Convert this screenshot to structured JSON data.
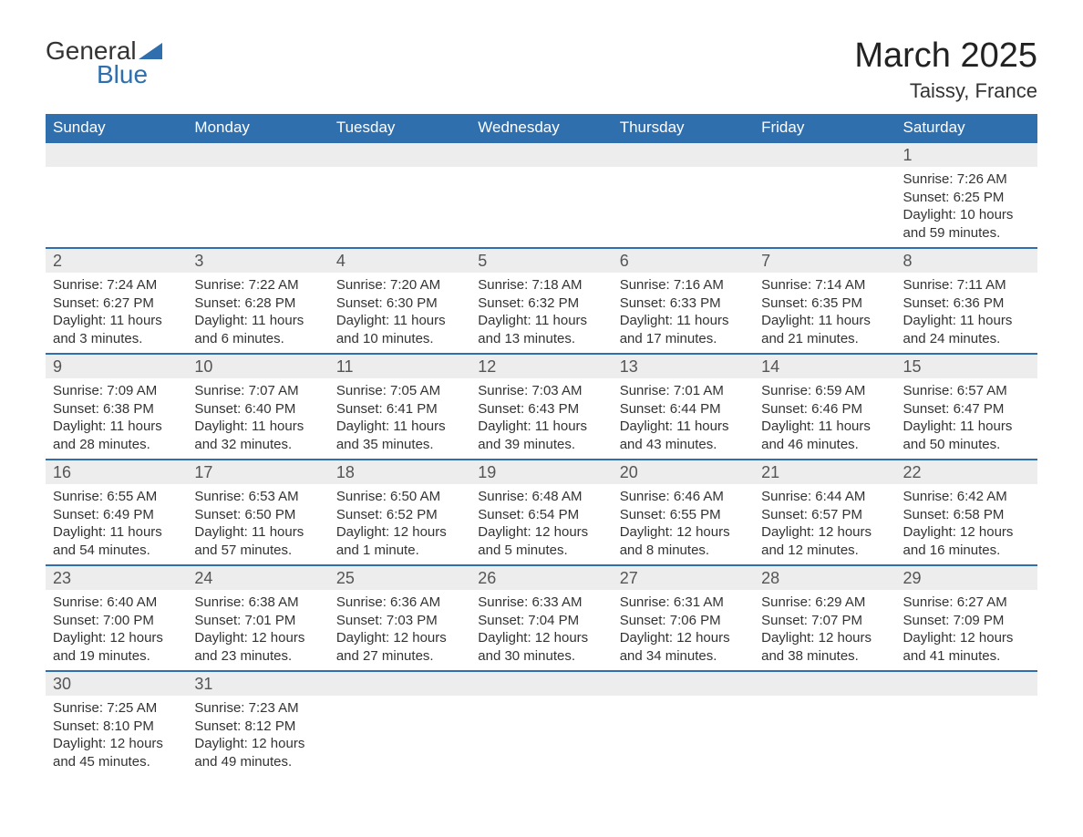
{
  "logo": {
    "text1": "General",
    "text2": "Blue",
    "tri_color": "#2f6fae"
  },
  "title": "March 2025",
  "location": "Taissy, France",
  "colors": {
    "header_bg": "#2f6fae",
    "header_text": "#ffffff",
    "daynum_bg": "#ededed",
    "border": "#2f6fae",
    "text": "#333333"
  },
  "day_headers": [
    "Sunday",
    "Monday",
    "Tuesday",
    "Wednesday",
    "Thursday",
    "Friday",
    "Saturday"
  ],
  "weeks": [
    {
      "nums": [
        "",
        "",
        "",
        "",
        "",
        "",
        "1"
      ],
      "cells": [
        null,
        null,
        null,
        null,
        null,
        null,
        {
          "sunrise": "Sunrise: 7:26 AM",
          "sunset": "Sunset: 6:25 PM",
          "day1": "Daylight: 10 hours",
          "day2": "and 59 minutes."
        }
      ]
    },
    {
      "nums": [
        "2",
        "3",
        "4",
        "5",
        "6",
        "7",
        "8"
      ],
      "cells": [
        {
          "sunrise": "Sunrise: 7:24 AM",
          "sunset": "Sunset: 6:27 PM",
          "day1": "Daylight: 11 hours",
          "day2": "and 3 minutes."
        },
        {
          "sunrise": "Sunrise: 7:22 AM",
          "sunset": "Sunset: 6:28 PM",
          "day1": "Daylight: 11 hours",
          "day2": "and 6 minutes."
        },
        {
          "sunrise": "Sunrise: 7:20 AM",
          "sunset": "Sunset: 6:30 PM",
          "day1": "Daylight: 11 hours",
          "day2": "and 10 minutes."
        },
        {
          "sunrise": "Sunrise: 7:18 AM",
          "sunset": "Sunset: 6:32 PM",
          "day1": "Daylight: 11 hours",
          "day2": "and 13 minutes."
        },
        {
          "sunrise": "Sunrise: 7:16 AM",
          "sunset": "Sunset: 6:33 PM",
          "day1": "Daylight: 11 hours",
          "day2": "and 17 minutes."
        },
        {
          "sunrise": "Sunrise: 7:14 AM",
          "sunset": "Sunset: 6:35 PM",
          "day1": "Daylight: 11 hours",
          "day2": "and 21 minutes."
        },
        {
          "sunrise": "Sunrise: 7:11 AM",
          "sunset": "Sunset: 6:36 PM",
          "day1": "Daylight: 11 hours",
          "day2": "and 24 minutes."
        }
      ]
    },
    {
      "nums": [
        "9",
        "10",
        "11",
        "12",
        "13",
        "14",
        "15"
      ],
      "cells": [
        {
          "sunrise": "Sunrise: 7:09 AM",
          "sunset": "Sunset: 6:38 PM",
          "day1": "Daylight: 11 hours",
          "day2": "and 28 minutes."
        },
        {
          "sunrise": "Sunrise: 7:07 AM",
          "sunset": "Sunset: 6:40 PM",
          "day1": "Daylight: 11 hours",
          "day2": "and 32 minutes."
        },
        {
          "sunrise": "Sunrise: 7:05 AM",
          "sunset": "Sunset: 6:41 PM",
          "day1": "Daylight: 11 hours",
          "day2": "and 35 minutes."
        },
        {
          "sunrise": "Sunrise: 7:03 AM",
          "sunset": "Sunset: 6:43 PM",
          "day1": "Daylight: 11 hours",
          "day2": "and 39 minutes."
        },
        {
          "sunrise": "Sunrise: 7:01 AM",
          "sunset": "Sunset: 6:44 PM",
          "day1": "Daylight: 11 hours",
          "day2": "and 43 minutes."
        },
        {
          "sunrise": "Sunrise: 6:59 AM",
          "sunset": "Sunset: 6:46 PM",
          "day1": "Daylight: 11 hours",
          "day2": "and 46 minutes."
        },
        {
          "sunrise": "Sunrise: 6:57 AM",
          "sunset": "Sunset: 6:47 PM",
          "day1": "Daylight: 11 hours",
          "day2": "and 50 minutes."
        }
      ]
    },
    {
      "nums": [
        "16",
        "17",
        "18",
        "19",
        "20",
        "21",
        "22"
      ],
      "cells": [
        {
          "sunrise": "Sunrise: 6:55 AM",
          "sunset": "Sunset: 6:49 PM",
          "day1": "Daylight: 11 hours",
          "day2": "and 54 minutes."
        },
        {
          "sunrise": "Sunrise: 6:53 AM",
          "sunset": "Sunset: 6:50 PM",
          "day1": "Daylight: 11 hours",
          "day2": "and 57 minutes."
        },
        {
          "sunrise": "Sunrise: 6:50 AM",
          "sunset": "Sunset: 6:52 PM",
          "day1": "Daylight: 12 hours",
          "day2": "and 1 minute."
        },
        {
          "sunrise": "Sunrise: 6:48 AM",
          "sunset": "Sunset: 6:54 PM",
          "day1": "Daylight: 12 hours",
          "day2": "and 5 minutes."
        },
        {
          "sunrise": "Sunrise: 6:46 AM",
          "sunset": "Sunset: 6:55 PM",
          "day1": "Daylight: 12 hours",
          "day2": "and 8 minutes."
        },
        {
          "sunrise": "Sunrise: 6:44 AM",
          "sunset": "Sunset: 6:57 PM",
          "day1": "Daylight: 12 hours",
          "day2": "and 12 minutes."
        },
        {
          "sunrise": "Sunrise: 6:42 AM",
          "sunset": "Sunset: 6:58 PM",
          "day1": "Daylight: 12 hours",
          "day2": "and 16 minutes."
        }
      ]
    },
    {
      "nums": [
        "23",
        "24",
        "25",
        "26",
        "27",
        "28",
        "29"
      ],
      "cells": [
        {
          "sunrise": "Sunrise: 6:40 AM",
          "sunset": "Sunset: 7:00 PM",
          "day1": "Daylight: 12 hours",
          "day2": "and 19 minutes."
        },
        {
          "sunrise": "Sunrise: 6:38 AM",
          "sunset": "Sunset: 7:01 PM",
          "day1": "Daylight: 12 hours",
          "day2": "and 23 minutes."
        },
        {
          "sunrise": "Sunrise: 6:36 AM",
          "sunset": "Sunset: 7:03 PM",
          "day1": "Daylight: 12 hours",
          "day2": "and 27 minutes."
        },
        {
          "sunrise": "Sunrise: 6:33 AM",
          "sunset": "Sunset: 7:04 PM",
          "day1": "Daylight: 12 hours",
          "day2": "and 30 minutes."
        },
        {
          "sunrise": "Sunrise: 6:31 AM",
          "sunset": "Sunset: 7:06 PM",
          "day1": "Daylight: 12 hours",
          "day2": "and 34 minutes."
        },
        {
          "sunrise": "Sunrise: 6:29 AM",
          "sunset": "Sunset: 7:07 PM",
          "day1": "Daylight: 12 hours",
          "day2": "and 38 minutes."
        },
        {
          "sunrise": "Sunrise: 6:27 AM",
          "sunset": "Sunset: 7:09 PM",
          "day1": "Daylight: 12 hours",
          "day2": "and 41 minutes."
        }
      ]
    },
    {
      "nums": [
        "30",
        "31",
        "",
        "",
        "",
        "",
        ""
      ],
      "cells": [
        {
          "sunrise": "Sunrise: 7:25 AM",
          "sunset": "Sunset: 8:10 PM",
          "day1": "Daylight: 12 hours",
          "day2": "and 45 minutes."
        },
        {
          "sunrise": "Sunrise: 7:23 AM",
          "sunset": "Sunset: 8:12 PM",
          "day1": "Daylight: 12 hours",
          "day2": "and 49 minutes."
        },
        null,
        null,
        null,
        null,
        null
      ]
    }
  ]
}
